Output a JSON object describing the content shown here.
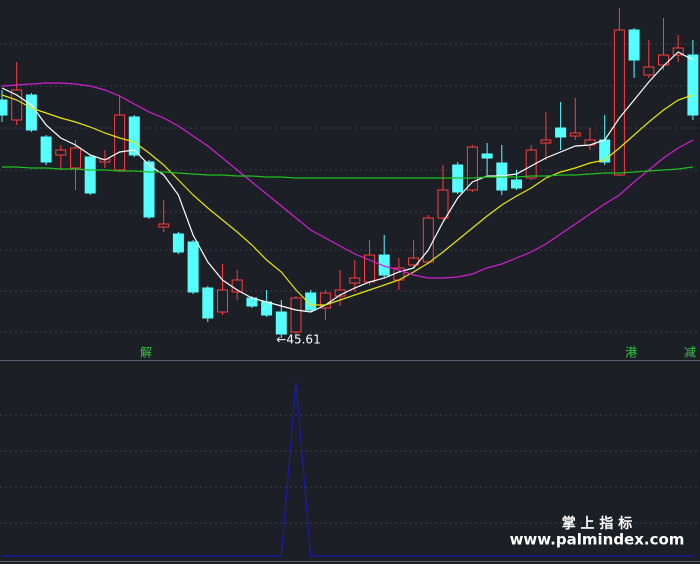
{
  "chart_data": [
    {
      "type": "candlestick",
      "categories": [
        null,
        null,
        null,
        null,
        null,
        null,
        null,
        null,
        null,
        null,
        null,
        null,
        null,
        null,
        null,
        null,
        null,
        null,
        null,
        null,
        null,
        null,
        null,
        null,
        null,
        null,
        null,
        null,
        null,
        null,
        null,
        null,
        null,
        null,
        null,
        null,
        null,
        null,
        null,
        null,
        null,
        null,
        null,
        null,
        null,
        null,
        null,
        null
      ],
      "open": [
        57.51,
        56.51,
        57.76,
        55.66,
        54.76,
        54.11,
        54.66,
        54.41,
        54.01,
        56.66,
        54.41,
        51.16,
        50.81,
        50.41,
        48.11,
        46.91,
        47.91,
        47.61,
        47.41,
        46.91,
        45.91,
        47.86,
        47.11,
        47.71,
        48.36,
        48.41,
        49.76,
        48.51,
        49.26,
        49.41,
        51.61,
        54.26,
        53.01,
        54.81,
        54.36,
        53.51,
        53.61,
        55.36,
        56.11,
        55.71,
        55.26,
        55.51,
        53.76,
        61.01,
        58.76,
        59.26,
        59.76,
        59.76
      ],
      "high": [
        58.01,
        59.41,
        57.86,
        55.76,
        55.26,
        55.51,
        54.76,
        55.01,
        57.76,
        56.76,
        54.51,
        52.51,
        50.91,
        50.51,
        48.21,
        49.31,
        49.01,
        47.71,
        48.01,
        47.51,
        47.71,
        48.01,
        48.01,
        49.01,
        49.51,
        50.51,
        50.76,
        49.61,
        50.51,
        51.76,
        54.26,
        54.41,
        55.26,
        55.36,
        55.26,
        54.01,
        55.26,
        56.91,
        57.41,
        57.61,
        56.11,
        56.76,
        62.11,
        61.11,
        60.51,
        61.61,
        60.76,
        60.51
      ],
      "low": [
        56.41,
        56.26,
        55.91,
        54.26,
        54.01,
        53.01,
        52.76,
        54.11,
        53.91,
        54.66,
        51.56,
        50.91,
        49.81,
        47.81,
        46.41,
        46.76,
        47.51,
        47.11,
        46.66,
        45.61,
        45.81,
        46.91,
        46.51,
        47.21,
        47.91,
        48.26,
        48.61,
        48.01,
        49.11,
        49.31,
        51.51,
        52.81,
        52.91,
        53.76,
        52.76,
        53.01,
        53.51,
        54.51,
        55.01,
        55.51,
        55.01,
        54.26,
        53.71,
        58.61,
        58.61,
        59.01,
        59.41,
        56.51
      ],
      "close": [
        56.76,
        58.01,
        56.01,
        54.41,
        55.01,
        55.11,
        52.86,
        54.56,
        56.76,
        54.76,
        51.66,
        51.31,
        49.91,
        47.91,
        46.61,
        48.01,
        48.51,
        47.21,
        46.76,
        45.81,
        47.61,
        47.01,
        47.86,
        48.01,
        48.61,
        49.76,
        48.76,
        49.11,
        49.61,
        51.61,
        53.01,
        52.91,
        55.16,
        54.61,
        53.01,
        53.11,
        55.01,
        55.51,
        55.66,
        55.86,
        55.51,
        54.41,
        61.01,
        59.51,
        59.16,
        59.76,
        60.11,
        56.76
      ],
      "up_color": "#ff3c3c",
      "down_color": "#54ffff",
      "lines": [
        {
          "color": "#ffffff",
          "values": [
            58.11,
            57.76,
            57.26,
            56.26,
            55.61,
            55.26,
            54.76,
            54.51,
            54.91,
            55.01,
            54.26,
            53.76,
            52.76,
            50.76,
            49.41,
            48.51,
            48.01,
            47.61,
            47.41,
            47.21,
            47.01,
            46.91,
            47.26,
            47.76,
            48.11,
            48.41,
            48.61,
            48.91,
            49.11,
            50.01,
            51.41,
            52.61,
            53.41,
            53.71,
            53.71,
            53.81,
            54.21,
            54.61,
            54.91,
            55.21,
            55.26,
            55.51,
            56.61,
            57.51,
            58.41,
            59.21,
            59.91,
            59.51
          ]
        },
        {
          "color": "#e6e600",
          "values": [
            57.76,
            57.51,
            57.11,
            56.86,
            56.61,
            56.41,
            56.16,
            55.86,
            55.61,
            55.41,
            54.86,
            54.26,
            53.51,
            52.76,
            52.11,
            51.51,
            50.91,
            50.26,
            49.51,
            48.91,
            48.01,
            47.26,
            47.26,
            47.51,
            47.76,
            48.01,
            48.26,
            48.51,
            48.91,
            49.36,
            49.91,
            50.51,
            51.11,
            51.71,
            52.26,
            52.71,
            53.11,
            53.61,
            53.91,
            54.11,
            54.36,
            54.51,
            55.11,
            55.76,
            56.41,
            57.01,
            57.51,
            57.76
          ]
        },
        {
          "color": "#d020d0",
          "values": [
            58.21,
            58.26,
            58.31,
            58.36,
            58.36,
            58.31,
            58.21,
            58.01,
            57.71,
            57.31,
            56.91,
            56.61,
            56.21,
            55.71,
            55.21,
            54.61,
            54.01,
            53.41,
            52.81,
            52.21,
            51.61,
            51.01,
            50.61,
            50.21,
            49.81,
            49.51,
            49.21,
            49.01,
            48.76,
            48.61,
            48.61,
            48.66,
            48.81,
            49.11,
            49.31,
            49.61,
            49.91,
            50.31,
            50.81,
            51.31,
            51.81,
            52.31,
            52.76,
            53.41,
            54.01,
            54.61,
            55.11,
            55.51
          ]
        },
        {
          "color": "#20c020",
          "values": [
            54.16,
            54.16,
            54.11,
            54.11,
            54.06,
            54.06,
            54.01,
            54.01,
            53.96,
            53.96,
            53.91,
            53.91,
            53.86,
            53.81,
            53.76,
            53.76,
            53.71,
            53.71,
            53.66,
            53.66,
            53.61,
            53.61,
            53.61,
            53.61,
            53.61,
            53.61,
            53.61,
            53.61,
            53.61,
            53.61,
            53.61,
            53.61,
            53.61,
            53.66,
            53.66,
            53.66,
            53.71,
            53.71,
            53.76,
            53.76,
            53.81,
            53.86,
            53.86,
            53.91,
            53.96,
            54.01,
            54.06,
            54.16
          ]
        }
      ],
      "signals": [
        null,
        null,
        null,
        null,
        null,
        null,
        null,
        null,
        null,
        null,
        "解",
        null,
        null,
        null,
        null,
        null,
        null,
        null,
        null,
        null,
        null,
        null,
        null,
        null,
        null,
        null,
        null,
        null,
        null,
        null,
        null,
        null,
        null,
        null,
        null,
        null,
        null,
        null,
        null,
        null,
        null,
        null,
        null,
        "港",
        null,
        null,
        null,
        "减"
      ],
      "signal_color": "#2ecc40",
      "low_label": "←45.61",
      "ylim": [
        44.61,
        62.51
      ]
    },
    {
      "type": "line",
      "values": [
        0,
        0,
        0,
        0,
        0,
        0,
        0,
        0,
        0,
        0,
        0,
        0,
        0,
        0,
        0,
        0,
        0,
        0,
        0,
        0,
        1,
        0,
        0,
        0,
        0,
        0,
        0,
        0,
        0,
        0,
        0,
        0,
        0,
        0,
        0,
        0,
        0,
        0,
        0,
        0,
        0,
        0,
        0,
        0,
        0,
        0,
        0,
        0
      ],
      "color": "#1a1ab4",
      "ylim": [
        0,
        1.12
      ]
    }
  ],
  "watermark": {
    "title": "掌 上 指 标",
    "url": "www.palmindex.com"
  }
}
